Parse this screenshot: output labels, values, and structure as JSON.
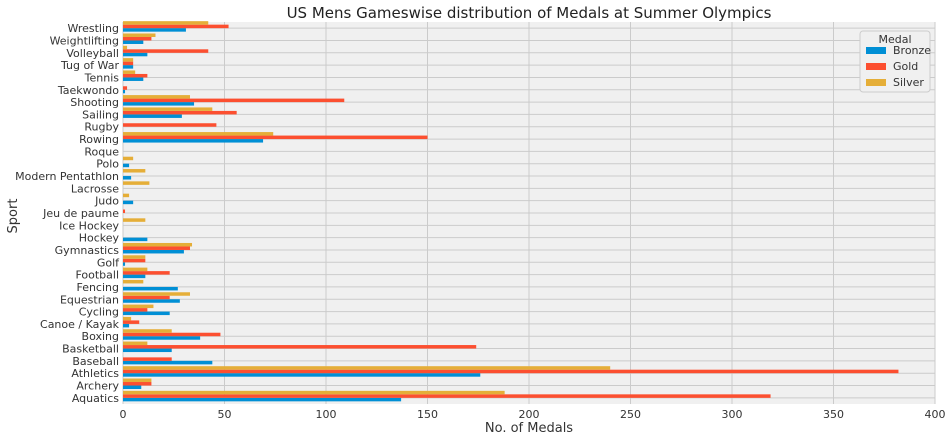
{
  "chart_data": {
    "type": "bar",
    "orientation": "horizontal",
    "title": "US Mens Gameswise distribution of Medals at Summer Olympics",
    "xlabel": "No. of Medals",
    "ylabel": "Sport",
    "xlim": [
      0,
      400
    ],
    "xticks": [
      0,
      50,
      100,
      150,
      200,
      250,
      300,
      350,
      400
    ],
    "grid": true,
    "legend_title": "Medal",
    "legend_position": "top-right",
    "categories": [
      "Aquatics",
      "Archery",
      "Athletics",
      "Baseball",
      "Basketball",
      "Boxing",
      "Canoe / Kayak",
      "Cycling",
      "Equestrian",
      "Fencing",
      "Football",
      "Golf",
      "Gymnastics",
      "Hockey",
      "Ice Hockey",
      "Jeu de paume",
      "Judo",
      "Lacrosse",
      "Modern Pentathlon",
      "Polo",
      "Roque",
      "Rowing",
      "Rugby",
      "Sailing",
      "Shooting",
      "Taekwondo",
      "Tennis",
      "Tug of War",
      "Volleyball",
      "Weightlifting",
      "Wrestling"
    ],
    "series": [
      {
        "name": "Bronze",
        "color": "#008fd5",
        "values": [
          137,
          9,
          176,
          44,
          24,
          38,
          3,
          23,
          28,
          27,
          11,
          1,
          30,
          12,
          0,
          0,
          5,
          0,
          4,
          3,
          0,
          69,
          0,
          29,
          35,
          1,
          10,
          5,
          12,
          10,
          31
        ]
      },
      {
        "name": "Gold",
        "color": "#fc4f30",
        "values": [
          319,
          14,
          382,
          24,
          174,
          48,
          8,
          12,
          23,
          0,
          23,
          11,
          33,
          0,
          0,
          1,
          0,
          0,
          0,
          0,
          0,
          150,
          46,
          56,
          109,
          2,
          12,
          5,
          42,
          14,
          52
        ]
      },
      {
        "name": "Silver",
        "color": "#e5ae38",
        "values": [
          188,
          14,
          240,
          0,
          12,
          24,
          4,
          15,
          33,
          10,
          12,
          11,
          34,
          0,
          11,
          0,
          3,
          13,
          11,
          5,
          0,
          74,
          0,
          44,
          33,
          0,
          6,
          5,
          2,
          16,
          42
        ]
      }
    ]
  }
}
